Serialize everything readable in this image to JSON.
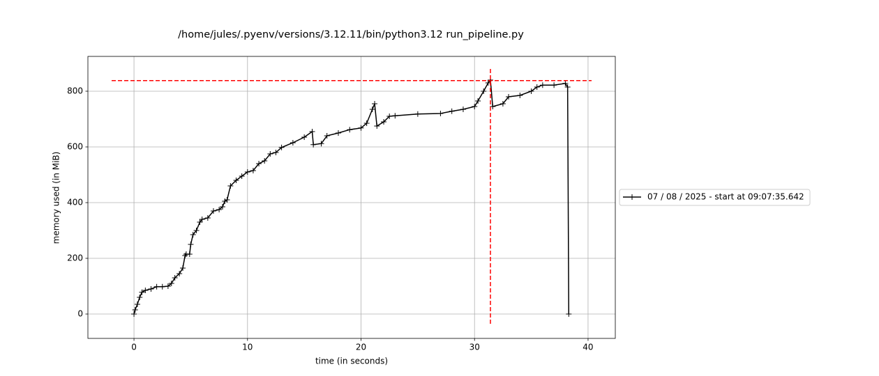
{
  "chart_data": {
    "type": "line",
    "title": "/home/jules/.pyenv/versions/3.12.11/bin/python3.12 run_pipeline.py",
    "x_label": "time (in seconds)",
    "y_label": "memory used (in MiB)",
    "x": [
      0,
      0.1,
      0.3,
      0.5,
      0.7,
      1.0,
      1.5,
      2.0,
      2.5,
      3.0,
      3.3,
      3.6,
      4.0,
      4.3,
      4.5,
      4.6,
      4.9,
      5.0,
      5.2,
      5.5,
      5.8,
      6.0,
      6.5,
      7.0,
      7.5,
      7.8,
      8.0,
      8.2,
      8.5,
      9.0,
      9.5,
      10,
      10.5,
      11,
      11.5,
      12,
      12.5,
      13,
      14,
      15,
      15.7,
      15.8,
      16.5,
      17,
      18,
      19,
      20,
      20.5,
      21,
      21.2,
      21.4,
      22,
      22.5,
      23,
      25,
      27,
      28,
      29,
      30,
      30.3,
      30.8,
      31.2,
      31.4,
      31.6,
      32.5,
      33,
      34,
      35,
      35.5,
      36,
      37,
      38,
      38.2,
      38.3
    ],
    "series": [
      {
        "name": "07 / 08 / 2025 - start at 09:07:35.642",
        "color": "#000000",
        "values": [
          0,
          15,
          35,
          60,
          78,
          85,
          90,
          98,
          98,
          100,
          110,
          130,
          145,
          165,
          210,
          215,
          215,
          250,
          285,
          300,
          330,
          340,
          345,
          370,
          375,
          385,
          405,
          410,
          460,
          480,
          495,
          510,
          515,
          540,
          550,
          575,
          580,
          598,
          615,
          635,
          655,
          608,
          612,
          640,
          650,
          662,
          668,
          685,
          735,
          755,
          675,
          690,
          710,
          712,
          718,
          720,
          728,
          735,
          745,
          765,
          800,
          830,
          840,
          745,
          755,
          780,
          785,
          800,
          815,
          822,
          822,
          828,
          815,
          0
        ]
      }
    ],
    "max_marker": {
      "x": 31.4,
      "y": 838,
      "color": "#ff0000"
    },
    "xlim": [
      -4.06,
      42.4
    ],
    "ylim": [
      -87.5,
      925
    ],
    "xticks": [
      0,
      10,
      20,
      30,
      40
    ],
    "yticks": [
      0,
      200,
      400,
      600,
      800
    ],
    "grid": true,
    "legend": "outside-right"
  }
}
